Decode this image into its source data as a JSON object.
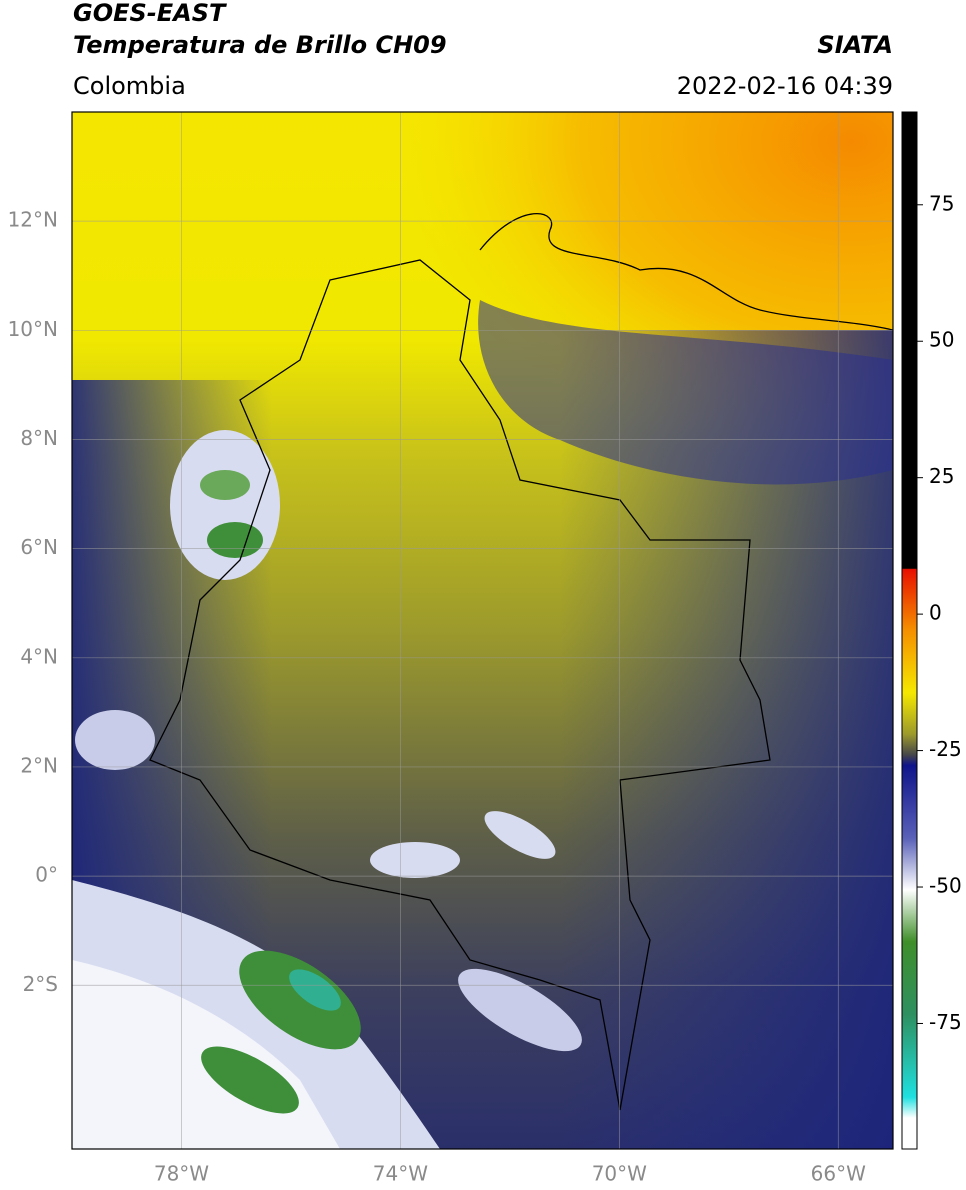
{
  "header": {
    "source": "GOES-EAST",
    "title": "Temperatura de Brillo CH09",
    "organization": "SIATA",
    "region": "Colombia",
    "datetime": "2022-02-16 04:39"
  },
  "map": {
    "xlim": [
      -80,
      -65
    ],
    "ylim": [
      -5,
      14
    ],
    "xticks": [
      {
        "value": -78,
        "label": "78°W"
      },
      {
        "value": -74,
        "label": "74°W"
      },
      {
        "value": -70,
        "label": "70°W"
      },
      {
        "value": -66,
        "label": "66°W"
      }
    ],
    "yticks": [
      {
        "value": 12,
        "label": "12°N"
      },
      {
        "value": 10,
        "label": "10°N"
      },
      {
        "value": 8,
        "label": "8°N"
      },
      {
        "value": 6,
        "label": "6°N"
      },
      {
        "value": 4,
        "label": "4°N"
      },
      {
        "value": 2,
        "label": "2°N"
      },
      {
        "value": 0,
        "label": "0°"
      },
      {
        "value": -2,
        "label": "2°S"
      }
    ],
    "grid": true
  },
  "colorbar": {
    "lim": [
      -98,
      92
    ],
    "ticks": [
      75,
      50,
      25,
      0,
      -25,
      -50,
      -75
    ]
  }
}
